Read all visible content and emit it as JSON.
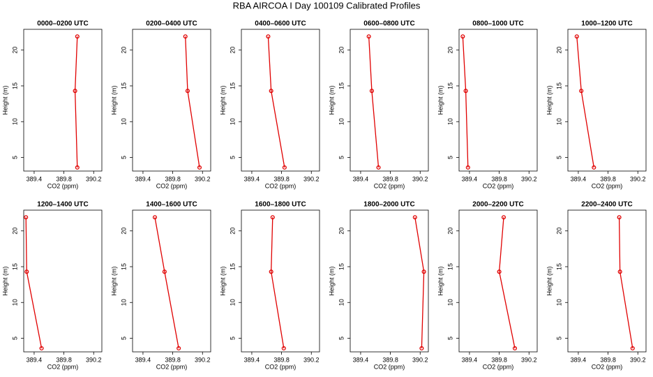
{
  "title": "RBA AIRCOA I  Day 100109  Calibrated Profiles",
  "chart_data": [
    {
      "type": "line",
      "title": "0000–0200 UTC",
      "xlabel": "CO2 (ppm)",
      "ylabel": "Height (m)",
      "color": "#e00000",
      "x": [
        389.98,
        389.95,
        389.98
      ],
      "values": [
        21.9,
        14.3,
        3.6
      ],
      "xlim": [
        389.26,
        390.31
      ],
      "ylim": [
        3.1,
        22.9
      ],
      "xticks": [
        389.4,
        389.8,
        390.2
      ],
      "yticks": [
        5,
        10,
        15,
        20
      ]
    },
    {
      "type": "line",
      "title": "0200–0400 UTC",
      "xlabel": "CO2 (ppm)",
      "ylabel": "Height (m)",
      "color": "#e00000",
      "x": [
        389.97,
        390.0,
        390.16
      ],
      "values": [
        21.9,
        14.3,
        3.6
      ],
      "xlim": [
        389.26,
        390.31
      ],
      "ylim": [
        3.1,
        22.9
      ],
      "xticks": [
        389.4,
        389.8,
        390.2
      ],
      "yticks": [
        5,
        10,
        15,
        20
      ]
    },
    {
      "type": "line",
      "title": "0400–0600 UTC",
      "xlabel": "CO2 (ppm)",
      "ylabel": "Height (m)",
      "color": "#e00000",
      "x": [
        389.62,
        389.66,
        389.84
      ],
      "values": [
        21.9,
        14.3,
        3.6
      ],
      "xlim": [
        389.26,
        390.31
      ],
      "ylim": [
        3.1,
        22.9
      ],
      "xticks": [
        389.4,
        389.8,
        390.2
      ],
      "yticks": [
        5,
        10,
        15,
        20
      ]
    },
    {
      "type": "line",
      "title": "0600–0800 UTC",
      "xlabel": "CO2 (ppm)",
      "ylabel": "Height (m)",
      "color": "#e00000",
      "x": [
        389.51,
        389.55,
        389.64
      ],
      "values": [
        21.9,
        14.3,
        3.6
      ],
      "xlim": [
        389.26,
        390.31
      ],
      "ylim": [
        3.1,
        22.9
      ],
      "xticks": [
        389.4,
        389.8,
        390.2
      ],
      "yticks": [
        5,
        10,
        15,
        20
      ]
    },
    {
      "type": "line",
      "title": "0800–1000 UTC",
      "xlabel": "CO2 (ppm)",
      "ylabel": "Height (m)",
      "color": "#e00000",
      "x": [
        389.31,
        389.35,
        389.38
      ],
      "values": [
        21.9,
        14.3,
        3.6
      ],
      "xlim": [
        389.26,
        390.31
      ],
      "ylim": [
        3.1,
        22.9
      ],
      "xticks": [
        389.4,
        389.8,
        390.2
      ],
      "yticks": [
        5,
        10,
        15,
        20
      ]
    },
    {
      "type": "line",
      "title": "1000–1200 UTC",
      "xlabel": "CO2 (ppm)",
      "ylabel": "Height (m)",
      "color": "#e00000",
      "x": [
        389.38,
        389.44,
        389.61
      ],
      "values": [
        21.9,
        14.3,
        3.6
      ],
      "xlim": [
        389.26,
        390.31
      ],
      "ylim": [
        3.1,
        22.9
      ],
      "xticks": [
        389.4,
        389.8,
        390.2
      ],
      "yticks": [
        5,
        10,
        15,
        20
      ]
    },
    {
      "type": "line",
      "title": "1200–1400 UTC",
      "xlabel": "CO2 (ppm)",
      "ylabel": "Height (m)",
      "color": "#e00000",
      "x": [
        389.29,
        389.3,
        389.5
      ],
      "values": [
        21.9,
        14.3,
        3.6
      ],
      "xlim": [
        389.26,
        390.31
      ],
      "ylim": [
        3.1,
        22.9
      ],
      "xticks": [
        389.4,
        389.8,
        390.2
      ],
      "yticks": [
        5,
        10,
        15,
        20
      ]
    },
    {
      "type": "line",
      "title": "1400–1600 UTC",
      "xlabel": "CO2 (ppm)",
      "ylabel": "Height (m)",
      "color": "#e00000",
      "x": [
        389.56,
        389.69,
        389.88
      ],
      "values": [
        21.9,
        14.3,
        3.6
      ],
      "xlim": [
        389.26,
        390.31
      ],
      "ylim": [
        3.1,
        22.9
      ],
      "xticks": [
        389.4,
        389.8,
        390.2
      ],
      "yticks": [
        5,
        10,
        15,
        20
      ]
    },
    {
      "type": "line",
      "title": "1600–1800 UTC",
      "xlabel": "CO2 (ppm)",
      "ylabel": "Height (m)",
      "color": "#e00000",
      "x": [
        389.68,
        389.66,
        389.83
      ],
      "values": [
        21.9,
        14.3,
        3.6
      ],
      "xlim": [
        389.26,
        390.31
      ],
      "ylim": [
        3.1,
        22.9
      ],
      "xticks": [
        389.4,
        389.8,
        390.2
      ],
      "yticks": [
        5,
        10,
        15,
        20
      ]
    },
    {
      "type": "line",
      "title": "1800–2000 UTC",
      "xlabel": "CO2 (ppm)",
      "ylabel": "Height (m)",
      "color": "#e00000",
      "x": [
        390.13,
        390.25,
        390.22
      ],
      "values": [
        21.9,
        14.3,
        3.6
      ],
      "xlim": [
        389.26,
        390.31
      ],
      "ylim": [
        3.1,
        22.9
      ],
      "xticks": [
        389.4,
        389.8,
        390.2
      ],
      "yticks": [
        5,
        10,
        15,
        20
      ]
    },
    {
      "type": "line",
      "title": "2000–2200 UTC",
      "xlabel": "CO2 (ppm)",
      "ylabel": "Height (m)",
      "color": "#e00000",
      "x": [
        389.86,
        389.8,
        390.01
      ],
      "values": [
        21.9,
        14.3,
        3.6
      ],
      "xlim": [
        389.26,
        390.31
      ],
      "ylim": [
        3.1,
        22.9
      ],
      "xticks": [
        389.4,
        389.8,
        390.2
      ],
      "yticks": [
        5,
        10,
        15,
        20
      ]
    },
    {
      "type": "line",
      "title": "2200–2400 UTC",
      "xlabel": "CO2 (ppm)",
      "ylabel": "Height (m)",
      "color": "#e00000",
      "x": [
        389.95,
        389.96,
        390.13
      ],
      "values": [
        21.9,
        14.3,
        3.6
      ],
      "xlim": [
        389.26,
        390.31
      ],
      "ylim": [
        3.1,
        22.9
      ],
      "xticks": [
        389.4,
        389.8,
        390.2
      ],
      "yticks": [
        5,
        10,
        15,
        20
      ]
    }
  ]
}
